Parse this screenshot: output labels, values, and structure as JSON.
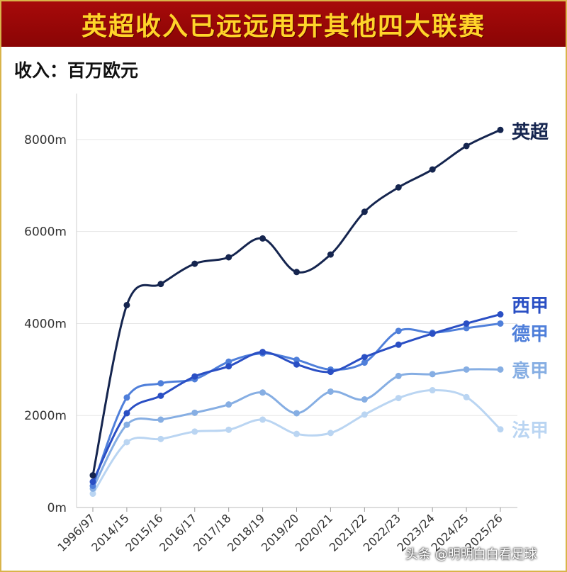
{
  "header": {
    "title": "英超收入已远远甩开其他四大联赛"
  },
  "unit_label": "收入：百万欧元",
  "watermark": "头条 @明明白白看足球",
  "chart_data": {
    "type": "line",
    "title": "英超收入已远远甩开其他四大联赛",
    "xlabel": "",
    "ylabel": "收入：百万欧元",
    "ylim": [
      0,
      9000
    ],
    "yticks": [
      0,
      2000,
      4000,
      6000,
      8000
    ],
    "ytick_labels": [
      "0m",
      "2000m",
      "4000m",
      "6000m",
      "8000m"
    ],
    "grid": true,
    "legend": "line-end labels",
    "categories": [
      "1996/97",
      "2014/15",
      "2015/16",
      "2016/17",
      "2017/18",
      "2018/19",
      "2019/20",
      "2020/21",
      "2021/22",
      "2022/23",
      "2023/24",
      "2024/25",
      "2025/26"
    ],
    "series": [
      {
        "name": "英超",
        "color": "#15254f",
        "values": [
          700,
          4400,
          4860,
          5300,
          5440,
          5850,
          5120,
          5500,
          6430,
          6960,
          7350,
          7860,
          8210
        ]
      },
      {
        "name": "西甲",
        "color": "#2a4fc4",
        "values": [
          560,
          2050,
          2430,
          2850,
          3070,
          3380,
          3110,
          2950,
          3270,
          3540,
          3780,
          4000,
          4200
        ]
      },
      {
        "name": "德甲",
        "color": "#4f7fda",
        "values": [
          470,
          2390,
          2700,
          2790,
          3170,
          3350,
          3210,
          3000,
          3150,
          3840,
          3800,
          3900,
          4000
        ]
      },
      {
        "name": "意甲",
        "color": "#86aee3",
        "values": [
          410,
          1800,
          1910,
          2060,
          2240,
          2500,
          2050,
          2520,
          2350,
          2860,
          2900,
          3000,
          3000
        ]
      },
      {
        "name": "法甲",
        "color": "#bad5f2",
        "values": [
          300,
          1420,
          1490,
          1650,
          1690,
          1910,
          1600,
          1620,
          2020,
          2380,
          2550,
          2400,
          1700
        ]
      }
    ]
  }
}
